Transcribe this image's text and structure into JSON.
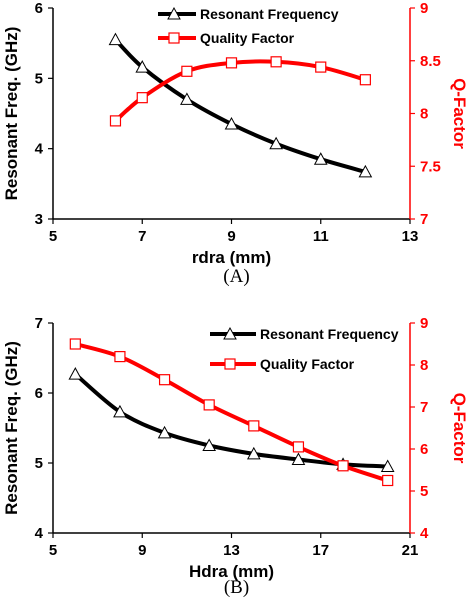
{
  "colors": {
    "left_series": "#000000",
    "right_series": "#ff0000",
    "axis_left": "#000000",
    "axis_right": "#ff0000"
  },
  "chart_data": [
    {
      "type": "line",
      "caption": "(A)",
      "xlabel": "rdra (mm)",
      "ylabel": "Resonant Freq. (GHz)",
      "ylabel_right": "Q-Factor",
      "xlim": [
        5,
        13
      ],
      "ylim": [
        3,
        6
      ],
      "ylim_right": [
        7,
        9
      ],
      "x_ticks": [
        "5",
        "7",
        "9",
        "11",
        "13"
      ],
      "y_ticks": [
        "3",
        "4",
        "5",
        "6"
      ],
      "y_ticks_right": [
        "7",
        "7.5",
        "8",
        "8.5",
        "9"
      ],
      "legend_position": "top-center",
      "series": [
        {
          "name": "Resonant Frequency",
          "axis": "left",
          "color": "#000000",
          "marker": "triangle",
          "x": [
            6.4,
            7,
            8,
            9,
            10,
            11,
            12
          ],
          "values": [
            5.55,
            5.16,
            4.7,
            4.35,
            4.07,
            3.85,
            3.67
          ]
        },
        {
          "name": "Quality Factor",
          "axis": "right",
          "color": "#ff0000",
          "marker": "square",
          "x": [
            6.4,
            7,
            8,
            9,
            10,
            11,
            12
          ],
          "values": [
            7.93,
            8.15,
            8.4,
            8.48,
            8.49,
            8.44,
            8.32
          ]
        }
      ]
    },
    {
      "type": "line",
      "caption": "(B)",
      "xlabel": "Hdra (mm)",
      "ylabel": "Resonant Freq. (GHz)",
      "ylabel_right": "Q-Factor",
      "xlim": [
        5,
        21
      ],
      "ylim": [
        4,
        7
      ],
      "ylim_right": [
        4,
        9
      ],
      "x_ticks": [
        "5",
        "9",
        "13",
        "17",
        "21"
      ],
      "y_ticks": [
        "4",
        "5",
        "6",
        "7"
      ],
      "y_ticks_right": [
        "4",
        "5",
        "6",
        "7",
        "8",
        "9"
      ],
      "legend_position": "top-right",
      "series": [
        {
          "name": "Resonant Frequency",
          "axis": "left",
          "color": "#000000",
          "marker": "triangle",
          "x": [
            6,
            8,
            10,
            12,
            14,
            16,
            18,
            20
          ],
          "values": [
            6.27,
            5.73,
            5.43,
            5.25,
            5.13,
            5.05,
            4.98,
            4.95
          ]
        },
        {
          "name": "Quality Factor",
          "axis": "right",
          "color": "#ff0000",
          "marker": "square",
          "x": [
            6,
            8,
            10,
            12,
            14,
            16,
            18,
            20
          ],
          "values": [
            8.5,
            8.2,
            7.65,
            7.05,
            6.55,
            6.05,
            5.6,
            5.25
          ]
        }
      ]
    }
  ]
}
